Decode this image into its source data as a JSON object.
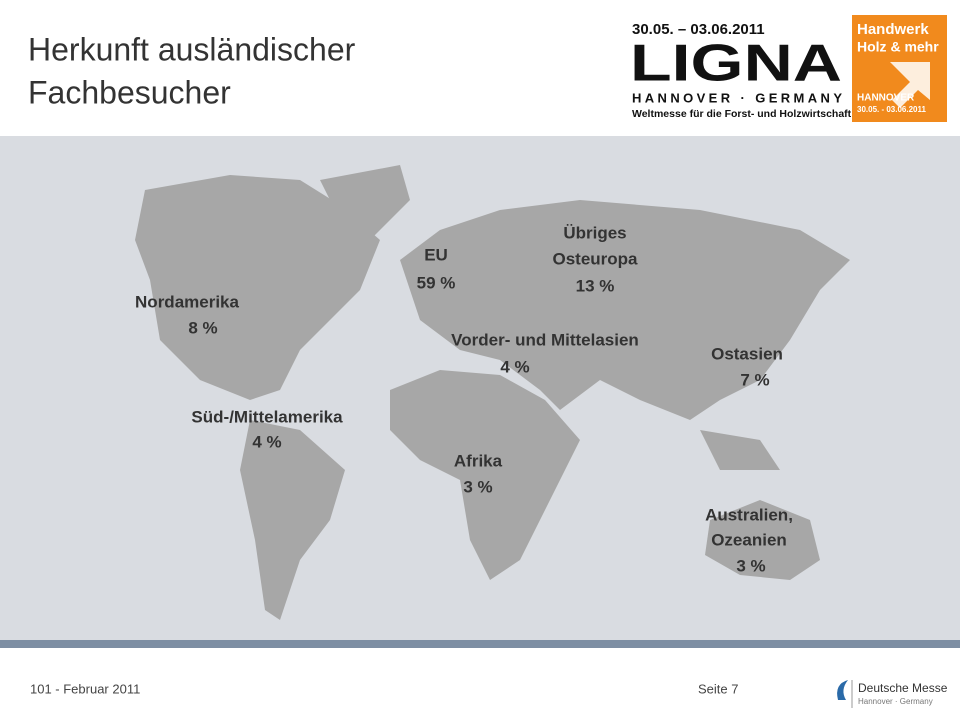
{
  "header": {
    "title_lines": [
      "Herkunft ausländischer",
      "Fachbesucher"
    ],
    "ligna": {
      "dates": "30.05. – 03.06.2011",
      "name": "LIGNA",
      "place": "HANNOVER · GERMANY",
      "tagline": "Weltmesse für die Forst- und Holzwirtschaft"
    },
    "handwerk": {
      "lines": [
        "Handwerk",
        "Holz & mehr"
      ],
      "place": "HANNOVER",
      "dates": "30.05. - 03.06.2011"
    }
  },
  "regions": [
    {
      "name_lines": [
        "Nordamerika"
      ],
      "share": "8 %"
    },
    {
      "name_lines": [
        "Süd-/Mittelamerika"
      ],
      "share": "4 %"
    },
    {
      "name_lines": [
        "EU"
      ],
      "share": "59 %"
    },
    {
      "name_lines": [
        "Übriges",
        "Osteuropa"
      ],
      "share": "13 %"
    },
    {
      "name_lines": [
        "Vorder- und Mittelasien"
      ],
      "share": "4 %"
    },
    {
      "name_lines": [
        "Ostasien"
      ],
      "share": "7 %"
    },
    {
      "name_lines": [
        "Afrika"
      ],
      "share": "3 %"
    },
    {
      "name_lines": [
        "Australien,",
        "Ozeanien"
      ],
      "share": "3 %"
    }
  ],
  "footer": {
    "date": "101 - Februar 2011",
    "page": "Seite 7",
    "brand": "Deutsche Messe",
    "brand_sub": "Hannover · Germany"
  }
}
